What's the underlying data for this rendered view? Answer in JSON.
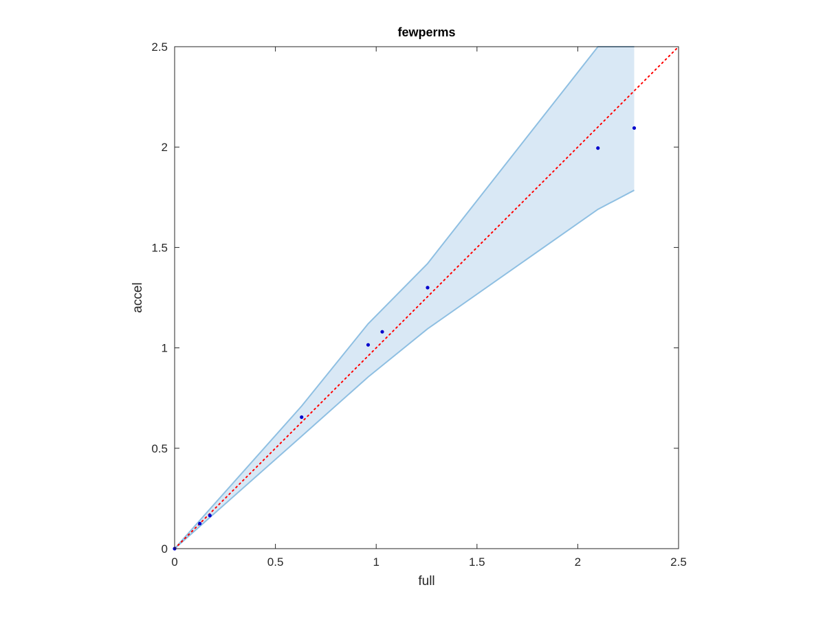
{
  "chart_data": {
    "type": "scatter",
    "title": "fewperms",
    "xlabel": "full",
    "ylabel": "accel",
    "xlim": [
      0,
      2.5
    ],
    "ylim": [
      0,
      2.5
    ],
    "xticks": [
      "0",
      "0.5",
      "1",
      "1.5",
      "2",
      "2.5"
    ],
    "yticks": [
      "0",
      "0.5",
      "1",
      "1.5",
      "2",
      "2.5"
    ],
    "grid": false,
    "points": {
      "x": [
        0,
        0.125,
        0.175,
        0.63,
        0.96,
        1.03,
        1.255,
        2.1,
        2.28
      ],
      "y": [
        0,
        0.125,
        0.165,
        0.655,
        1.015,
        1.08,
        1.3,
        1.995,
        2.095
      ],
      "color": "#0000cc"
    },
    "band": {
      "x": [
        0,
        0.63,
        0.96,
        1.255,
        2.1,
        2.28
      ],
      "upper": [
        0,
        0.71,
        1.12,
        1.42,
        2.5,
        2.5
      ],
      "lower": [
        0,
        0.56,
        0.855,
        1.095,
        1.69,
        1.785
      ],
      "fill_color": "#d9e8f5",
      "line_color": "#8ebfe2"
    },
    "reference_line": {
      "x": [
        0,
        2.5
      ],
      "y": [
        0,
        2.5
      ],
      "color": "#ff0000",
      "style": "dotted"
    }
  }
}
